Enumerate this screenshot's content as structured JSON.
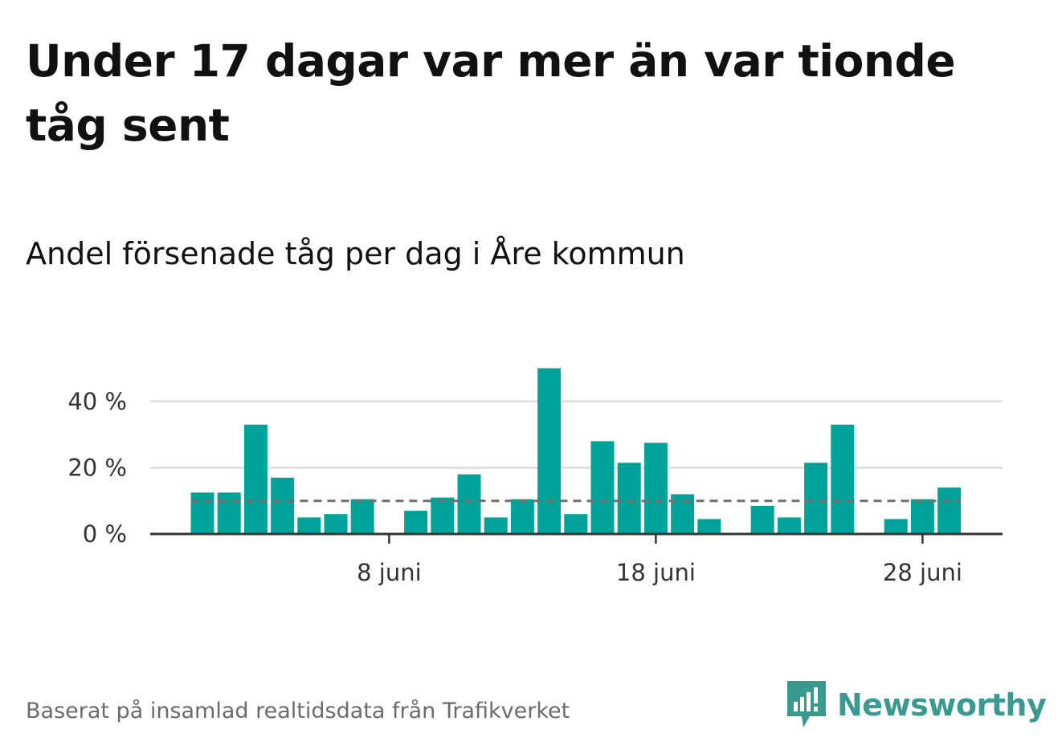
{
  "title": "Under 17 dagar var mer än var tionde tåg sent",
  "subtitle": "Andel försenade tåg per dag i Åre kommun",
  "source": "Baserat på insamlad realtidsdata från Trafikverket",
  "logo_text": "Newsworthy",
  "colors": {
    "bar": "#00a39a",
    "reference": "#707070",
    "grid": "#dddddd",
    "axis": "#333333",
    "logo": "#3a9a8f"
  },
  "chart_data": {
    "type": "bar",
    "x": [
      "1 juni",
      "2 juni",
      "3 juni",
      "4 juni",
      "5 juni",
      "6 juni",
      "7 juni",
      "8 juni",
      "9 juni",
      "10 juni",
      "11 juni",
      "12 juni",
      "13 juni",
      "14 juni",
      "15 juni",
      "16 juni",
      "17 juni",
      "18 juni",
      "19 juni",
      "20 juni",
      "21 juni",
      "22 juni",
      "23 juni",
      "24 juni",
      "25 juni",
      "26 juni",
      "27 juni",
      "28 juni",
      "29 juni"
    ],
    "values": [
      12.5,
      12.5,
      33,
      17,
      5,
      6,
      10.5,
      0,
      7,
      11,
      18,
      5,
      10.5,
      50,
      6,
      28,
      21.5,
      27.5,
      12,
      4.5,
      0,
      8.5,
      5,
      21.5,
      33,
      0,
      4.5,
      10.5,
      14
    ],
    "reference_line": 10,
    "ylim": [
      0,
      55
    ],
    "y_ticks": [
      0,
      20,
      40
    ],
    "y_tick_labels": [
      "0 %",
      "20 %",
      "40 %"
    ],
    "x_ticks": [
      "8 juni",
      "18 juni",
      "28 juni"
    ],
    "grid": true
  }
}
